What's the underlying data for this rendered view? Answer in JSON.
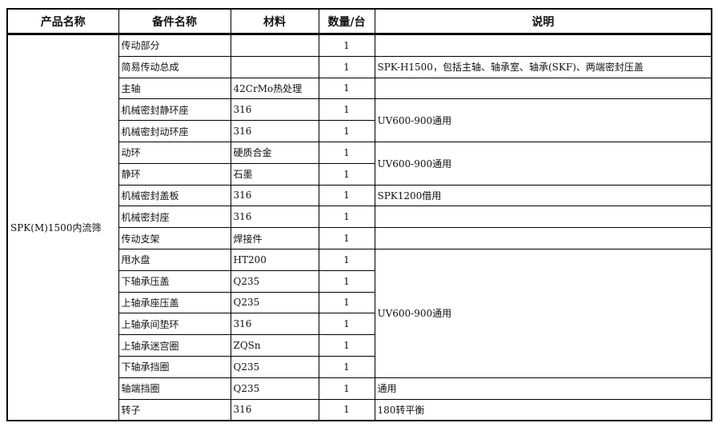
{
  "headers": [
    "产品名称",
    "备件名称",
    "材料",
    "数量/台",
    "说明"
  ],
  "product": "SPK(M)1500内流筛",
  "rows": [
    {
      "part": "传动部分",
      "material": "",
      "qty": "1"
    },
    {
      "part": "简易传动总成",
      "material": "",
      "qty": "1"
    },
    {
      "part": "主轴",
      "material": "42CrMo热处理",
      "qty": "1"
    },
    {
      "part": "机械密封静环座",
      "material": "316",
      "qty": "1"
    },
    {
      "part": "机械密封动环座",
      "material": "316",
      "qty": "1"
    },
    {
      "part": "动环",
      "material": "硬质合金",
      "qty": "1"
    },
    {
      "part": "静环",
      "material": "石墨",
      "qty": "1"
    },
    {
      "part": "机械密封盖板",
      "material": "316",
      "qty": "1"
    },
    {
      "part": "机械密封座",
      "material": "316",
      "qty": "1"
    },
    {
      "part": "传动支架",
      "material": "焊接件",
      "qty": "1"
    },
    {
      "part": "甩水盘",
      "material": "HT200",
      "qty": "1"
    },
    {
      "part": "下轴承压盖",
      "material": "Q235",
      "qty": "1"
    },
    {
      "part": "上轴承座压盖",
      "material": "Q235",
      "qty": "1"
    },
    {
      "part": "上轴承间垫环",
      "material": "316",
      "qty": "1"
    },
    {
      "part": "上轴承迷宫圈",
      "material": "ZQSn",
      "qty": "1"
    },
    {
      "part": "下轴承挡圈",
      "material": "Q235",
      "qty": "1"
    },
    {
      "part": "轴端挡圈",
      "material": "Q235",
      "qty": "1"
    },
    {
      "part": "转子",
      "material": "316",
      "qty": "1"
    }
  ],
  "notes": [
    {
      "text": "",
      "rowspan": 1
    },
    {
      "text": "SPK-H1500，包括主轴、轴承室、轴承(SKF)、两端密封压盖",
      "rowspan": 1
    },
    {
      "text": "",
      "rowspan": 1
    },
    {
      "text": "UV600-900通用",
      "rowspan": 2
    },
    {
      "text": "UV600-900通用",
      "rowspan": 2
    },
    {
      "text": "SPK1200借用",
      "rowspan": 1
    },
    {
      "text": "",
      "rowspan": 1
    },
    {
      "text": "",
      "rowspan": 1
    },
    {
      "text": "UV600-900通用",
      "rowspan": 6
    },
    {
      "text": "通用",
      "rowspan": 1
    },
    {
      "text": "180转平衡",
      "rowspan": 1
    }
  ]
}
